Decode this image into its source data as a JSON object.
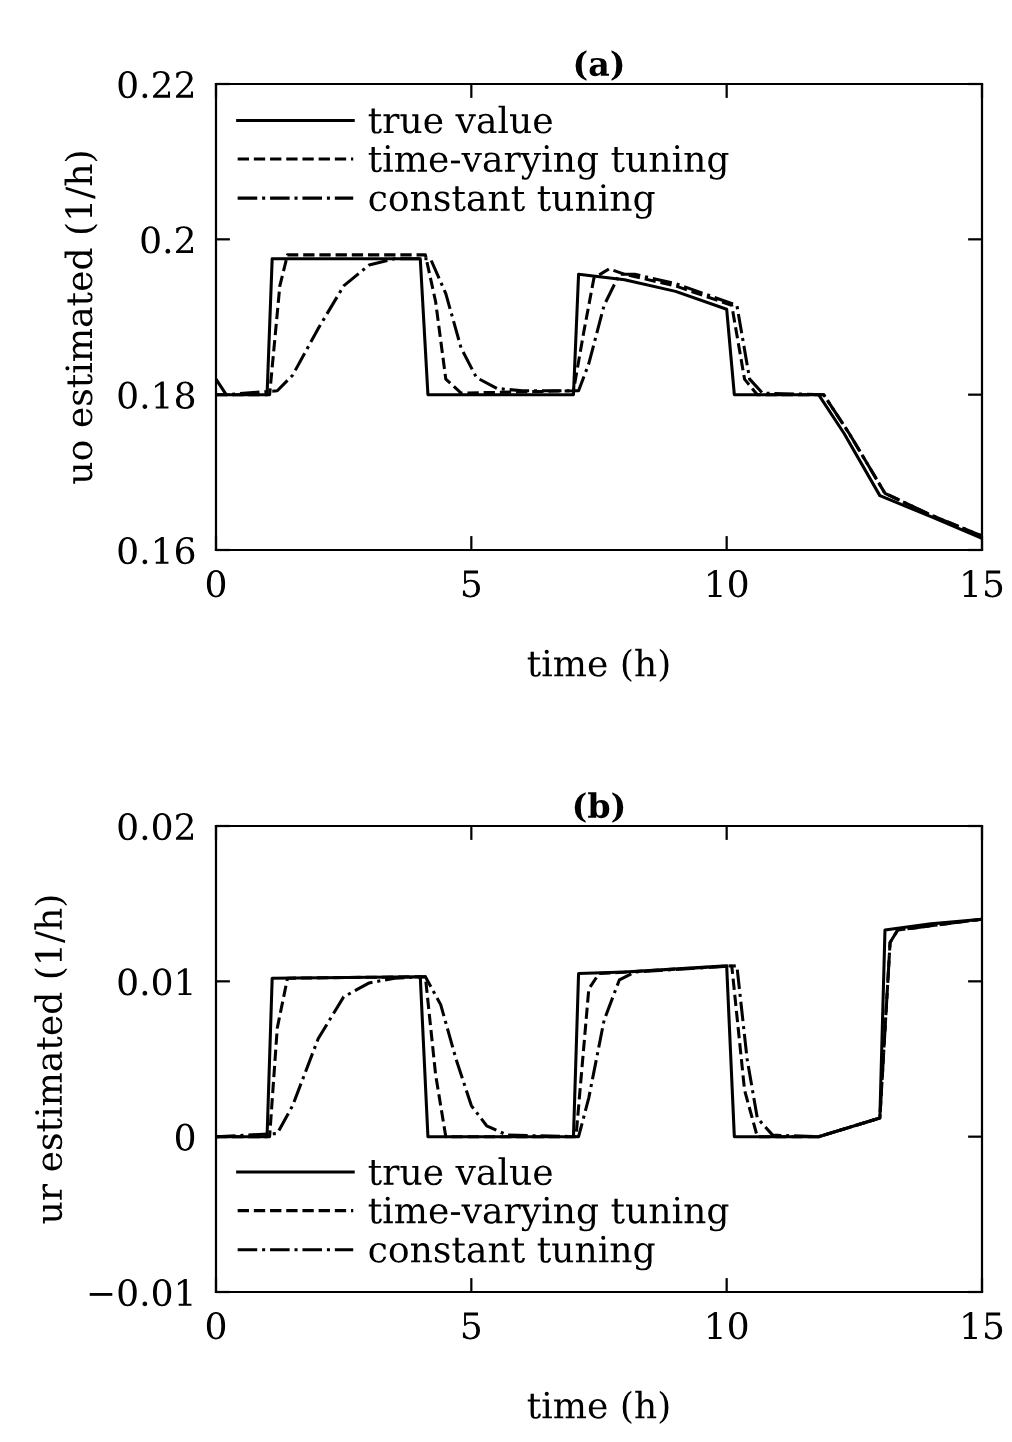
{
  "chart_data": [
    {
      "type": "line",
      "title": "(a)",
      "xlabel": "time (h)",
      "ylabel": "uo estimated (1/h)",
      "xlim": [
        0,
        15
      ],
      "xticks": [
        0,
        5,
        10,
        15
      ],
      "ylim": [
        0.16,
        0.22
      ],
      "yticks": [
        {
          "value": 0.16,
          "label": "0.16"
        },
        {
          "value": 0.18,
          "label": "0.18"
        },
        {
          "value": 0.2,
          "label": "0.2"
        },
        {
          "value": 0.22,
          "label": "0.22"
        }
      ],
      "grid": false,
      "legend": "top left",
      "series": [
        {
          "name": "true value",
          "color": "#000000",
          "line_style": "solid",
          "x": [
            0,
            1.0,
            1.1,
            4.0,
            4.15,
            7.0,
            7.1,
            8,
            9,
            10,
            10.15,
            11.8,
            12.3,
            13,
            14,
            15
          ],
          "values": [
            0.18,
            0.18,
            0.1975,
            0.1975,
            0.18,
            0.18,
            0.1955,
            0.1948,
            0.1933,
            0.191,
            0.18,
            0.18,
            0.175,
            0.167,
            0.1643,
            0.1615
          ]
        },
        {
          "name": "time-varying tuning",
          "color": "#000000",
          "line_style": "dashed",
          "x": [
            0,
            1.05,
            1.25,
            1.4,
            4.1,
            4.3,
            4.5,
            4.8,
            7,
            7.2,
            7.4,
            7.7,
            8,
            9,
            10.1,
            10.35,
            10.6,
            11.9,
            12.4,
            13.1,
            14,
            15
          ],
          "values": [
            0.18,
            0.18,
            0.194,
            0.198,
            0.198,
            0.192,
            0.182,
            0.1802,
            0.1805,
            0.188,
            0.195,
            0.1962,
            0.1955,
            0.194,
            0.1915,
            0.182,
            0.18,
            0.18,
            0.175,
            0.1673,
            0.1645,
            0.1618
          ]
        },
        {
          "name": "constant tuning",
          "color": "#000000",
          "line_style": "dashdot",
          "x": [
            0,
            0.1,
            0.2,
            1.2,
            1.5,
            2,
            2.5,
            3,
            3.5,
            4.2,
            4.5,
            4.8,
            5.1,
            5.5,
            6,
            7.1,
            7.3,
            7.6,
            7.9,
            8.2,
            9,
            10.2,
            10.45,
            10.7,
            11.9,
            12.4,
            13.1,
            14,
            15
          ],
          "values": [
            0.182,
            0.181,
            0.18,
            0.1805,
            0.1825,
            0.1885,
            0.194,
            0.1967,
            0.1975,
            0.1975,
            0.193,
            0.186,
            0.1822,
            0.1808,
            0.1805,
            0.1805,
            0.184,
            0.1915,
            0.1955,
            0.1955,
            0.1943,
            0.1915,
            0.182,
            0.1802,
            0.18,
            0.175,
            0.1673,
            0.1645,
            0.1618
          ]
        }
      ]
    },
    {
      "type": "line",
      "title": "(b)",
      "xlabel": "time (h)",
      "ylabel": "ur estimated (1/h)",
      "xlim": [
        0,
        15
      ],
      "xticks": [
        0,
        5,
        10,
        15
      ],
      "ylim": [
        -0.01,
        0.02
      ],
      "yticks": [
        {
          "value": -0.01,
          "label": "−0.01"
        },
        0,
        0.01,
        0.02
      ],
      "grid": false,
      "legend": "bottom left",
      "series": [
        {
          "name": "true value",
          "color": "#000000",
          "line_style": "solid",
          "x": [
            0,
            1.0,
            1.1,
            4.0,
            4.15,
            7.0,
            7.1,
            8,
            10.0,
            10.15,
            11.8,
            13.0,
            13.1,
            14,
            15
          ],
          "values": [
            0,
            0,
            0.0102,
            0.0103,
            0,
            0,
            0.0105,
            0.0106,
            0.011,
            0,
            0,
            0.0012,
            0.0133,
            0.0137,
            0.014
          ]
        },
        {
          "name": "time-varying tuning",
          "color": "#000000",
          "line_style": "dashed",
          "x": [
            0,
            1.05,
            1.2,
            1.4,
            4.1,
            4.3,
            4.5,
            7.05,
            7.3,
            7.5,
            10.1,
            10.35,
            10.6,
            11.8,
            13.0,
            13.2,
            13.35,
            15
          ],
          "values": [
            0,
            0,
            0.007,
            0.0102,
            0.0103,
            0.004,
            0,
            0,
            0.0095,
            0.0105,
            0.011,
            0.003,
            0,
            0,
            0.0012,
            0.0125,
            0.0133,
            0.014
          ]
        },
        {
          "name": "constant tuning",
          "color": "#000000",
          "line_style": "dashdot",
          "x": [
            0,
            1.2,
            1.5,
            2,
            2.5,
            3,
            3.5,
            4.1,
            4.4,
            4.7,
            5,
            5.3,
            5.7,
            7.1,
            7.3,
            7.6,
            7.9,
            8.2,
            10.2,
            10.4,
            10.6,
            10.9,
            11.8,
            13.0,
            13.2,
            13.35,
            15
          ],
          "values": [
            0,
            0.0002,
            0.002,
            0.0063,
            0.009,
            0.0099,
            0.0102,
            0.0103,
            0.0085,
            0.005,
            0.002,
            0.0007,
            0.0001,
            0,
            0.0025,
            0.0075,
            0.0101,
            0.0106,
            0.011,
            0.005,
            0.0012,
            0.0001,
            0,
            0.0012,
            0.0125,
            0.0133,
            0.014
          ]
        }
      ]
    }
  ]
}
